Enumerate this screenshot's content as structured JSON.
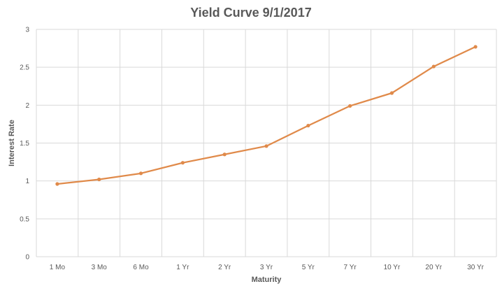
{
  "chart_data": {
    "type": "line",
    "title": "Yield Curve 9/1/2017",
    "xlabel": "Maturity",
    "ylabel": "Interest Rate",
    "categories": [
      "1 Mo",
      "3 Mo",
      "6 Mo",
      "1 Yr",
      "2 Yr",
      "3 Yr",
      "5 Yr",
      "7 Yr",
      "10 Yr",
      "20 Yr",
      "30 Yr"
    ],
    "series": [
      {
        "values": [
          0.96,
          1.02,
          1.1,
          1.24,
          1.35,
          1.46,
          1.73,
          1.99,
          2.16,
          2.51,
          2.77
        ]
      }
    ],
    "ylim": [
      0,
      3
    ],
    "yticks": [
      0,
      0.5,
      1,
      1.5,
      2,
      2.5,
      3
    ],
    "ytick_labels": [
      "0",
      "0.5",
      "1",
      "1.5",
      "2",
      "2.5",
      "3"
    ],
    "grid": true,
    "legend": "none",
    "colors": {
      "line": "#E08A4A",
      "grid": "#d9d9d9",
      "text": "#595959"
    }
  }
}
